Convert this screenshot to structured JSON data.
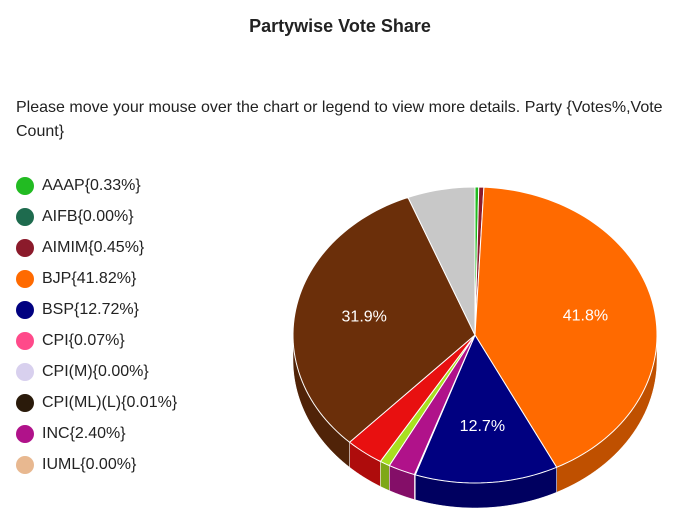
{
  "chart_data": {
    "type": "pie",
    "title": "Partywise Vote Share",
    "subtitle": "Please move your mouse over the chart or legend to view more details. Party {Votes%,Vote Count}",
    "categories": [
      "AAAP",
      "AIFB",
      "AIMIM",
      "BJP",
      "BSP",
      "CPI",
      "CPI(M)",
      "CPI(ML)(L)",
      "INC",
      "IUML",
      null,
      null,
      null,
      null
    ],
    "values": [
      0.33,
      0.0,
      0.45,
      41.82,
      12.72,
      0.07,
      0.0,
      0.01,
      2.4,
      0.0,
      0.9,
      3.4,
      31.9,
      6.0
    ],
    "legend_value_labels": [
      "{0.33%}",
      "{0.00%}",
      "{0.45%}",
      "{41.82%}",
      "{12.72%}",
      "{0.07%}",
      "{0.00%}",
      "{0.01%}",
      "{2.40%}",
      "{0.00%}",
      null,
      null,
      null,
      null
    ],
    "value_labels": [
      null,
      null,
      null,
      "41.8%",
      "12.7%",
      null,
      null,
      null,
      null,
      null,
      null,
      null,
      "31.9%",
      null
    ],
    "colors": [
      "#22bb22",
      "#1e6b4e",
      "#8b1a2b",
      "#ff6a00",
      "#000080",
      "#ff4a8a",
      "#d8d0ee",
      "#2a1a0a",
      "#b0128a",
      "#e8b890",
      "#a8e020",
      "#e81010",
      "#6b2f0a",
      "#c8c8c8"
    ]
  }
}
